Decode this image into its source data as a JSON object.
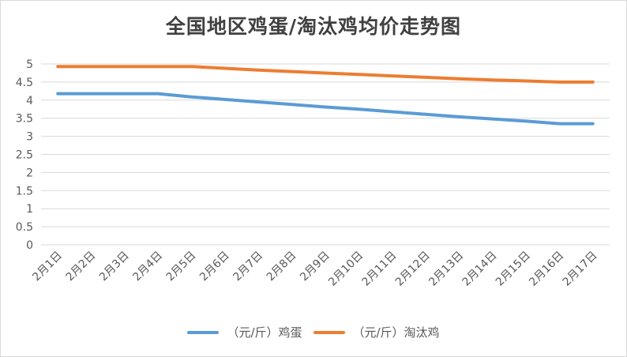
{
  "chart_data": {
    "type": "line",
    "title": "全国地区鸡蛋/淘汰鸡均价走势图",
    "categories": [
      "2月1日",
      "2月2日",
      "2月3日",
      "2月4日",
      "2月5日",
      "2月6日",
      "2月7日",
      "2月8日",
      "2月9日",
      "2月10日",
      "2月11日",
      "2月12日",
      "2月13日",
      "2月14日",
      "2月15日",
      "2月16日",
      "2月17日"
    ],
    "series": [
      {
        "name": "（元/斤）鸡蛋",
        "color": "#5B9BD5",
        "values": [
          4.18,
          4.18,
          4.18,
          4.18,
          4.09,
          4.02,
          3.95,
          3.88,
          3.81,
          3.75,
          3.68,
          3.61,
          3.54,
          3.48,
          3.42,
          3.35,
          3.35
        ]
      },
      {
        "name": "（元/斤）淘汰鸡",
        "color": "#ED7D31",
        "values": [
          4.93,
          4.93,
          4.93,
          4.93,
          4.93,
          4.88,
          4.83,
          4.79,
          4.75,
          4.71,
          4.67,
          4.63,
          4.59,
          4.56,
          4.53,
          4.5,
          4.5
        ]
      }
    ],
    "ylim": [
      0,
      5
    ],
    "yticks": [
      "0",
      "0.5",
      "1",
      "1.5",
      "2",
      "2.5",
      "3",
      "3.5",
      "4",
      "4.5",
      "5"
    ],
    "grid": true,
    "legend": "bottom"
  }
}
